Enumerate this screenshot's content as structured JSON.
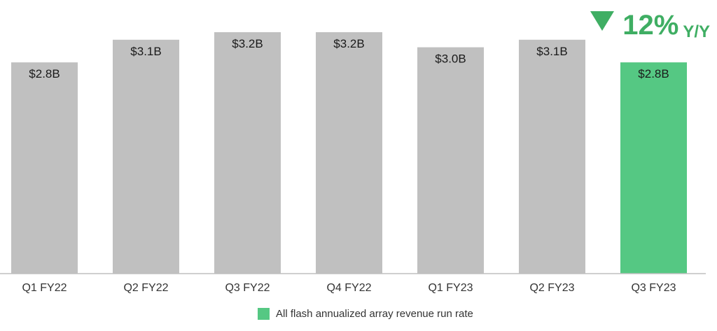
{
  "chart_data": {
    "type": "bar",
    "categories": [
      "Q1 FY22",
      "Q2 FY22",
      "Q3 FY22",
      "Q4 FY22",
      "Q1 FY23",
      "Q2 FY23",
      "Q3 FY23"
    ],
    "values": [
      2.8,
      3.1,
      3.2,
      3.2,
      3.0,
      3.1,
      2.8
    ],
    "value_labels": [
      "$2.8B",
      "$3.1B",
      "$3.2B",
      "$3.2B",
      "$3.0B",
      "$3.1B",
      "$2.8B"
    ],
    "highlight_index": 6,
    "title": "",
    "xlabel": "",
    "ylabel": "",
    "grid": false,
    "legend": {
      "placement": "bottom-center",
      "entries": [
        {
          "label": "All flash annualized array revenue run rate",
          "color": "#55c883"
        }
      ]
    }
  },
  "change_badge": {
    "direction": "down",
    "value": "12%",
    "suffix": "Y/Y",
    "color": "#3fae63"
  },
  "colors": {
    "bar_default": "#c0c0c0",
    "bar_highlight": "#55c883",
    "axis": "#bfbfbf"
  }
}
